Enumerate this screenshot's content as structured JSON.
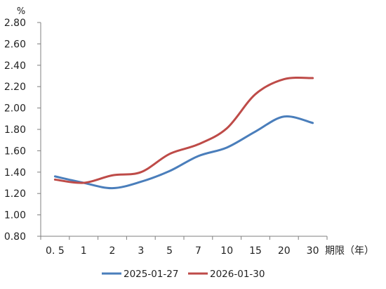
{
  "chart_data": {
    "type": "line",
    "title": "",
    "ylabel": "%",
    "xlabel": "期限（年）",
    "ylim": [
      0.8,
      2.8
    ],
    "yticks": [
      "0.80",
      "1.00",
      "1.20",
      "1.40",
      "1.60",
      "1.80",
      "2.00",
      "2.20",
      "2.40",
      "2.60",
      "2.80"
    ],
    "categories": [
      "0.5",
      "1",
      "2",
      "3",
      "5",
      "7",
      "10",
      "15",
      "20",
      "30"
    ],
    "category_labels": [
      "0. 5",
      "1",
      "2",
      "3",
      "5",
      "7",
      "10",
      "15",
      "20",
      "30"
    ],
    "grid": false,
    "legend_position": "bottom",
    "series": [
      {
        "name": "2025-01-27",
        "color": "#4a7ebb",
        "values": [
          1.36,
          1.3,
          1.25,
          1.31,
          1.41,
          1.55,
          1.63,
          1.78,
          1.92,
          1.86
        ]
      },
      {
        "name": "2026-01-30",
        "color": "#be4b48",
        "values": [
          1.33,
          1.3,
          1.37,
          1.4,
          1.57,
          1.66,
          1.81,
          2.13,
          2.27,
          2.28
        ]
      }
    ]
  }
}
